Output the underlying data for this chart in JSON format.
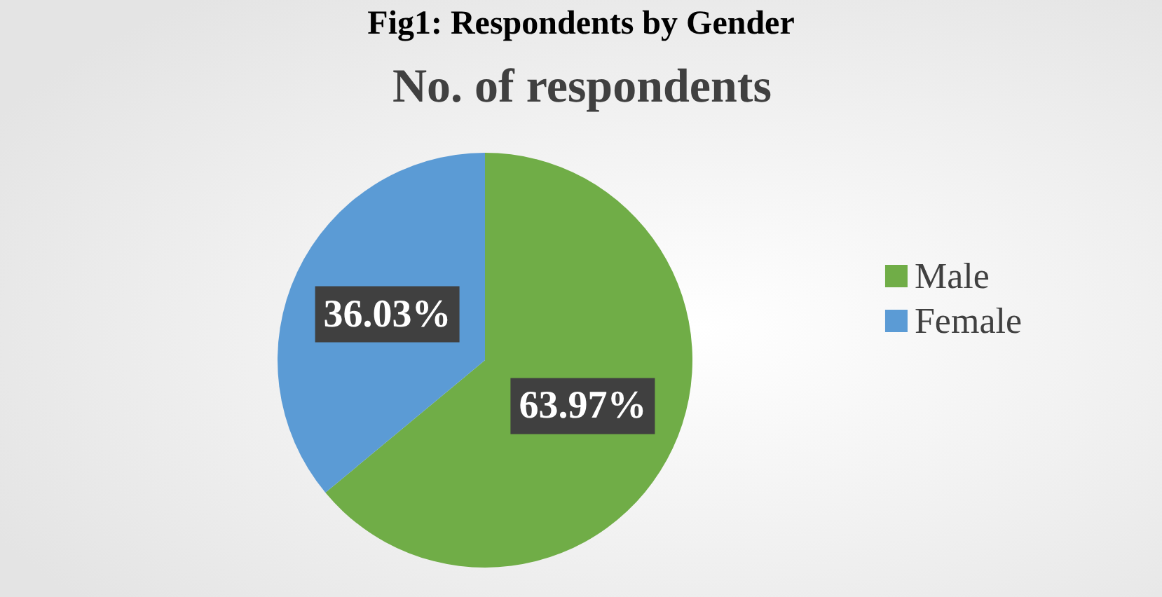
{
  "chart_data": {
    "type": "pie",
    "title": "Fig1: Respondents by Gender",
    "subtitle": "No. of respondents",
    "categories": [
      "Male",
      "Female"
    ],
    "values": [
      63.97,
      36.03
    ],
    "colors": [
      "#70ad47",
      "#5b9bd5"
    ],
    "value_labels": [
      "63.97%",
      "36.03%"
    ],
    "legend": "right"
  }
}
